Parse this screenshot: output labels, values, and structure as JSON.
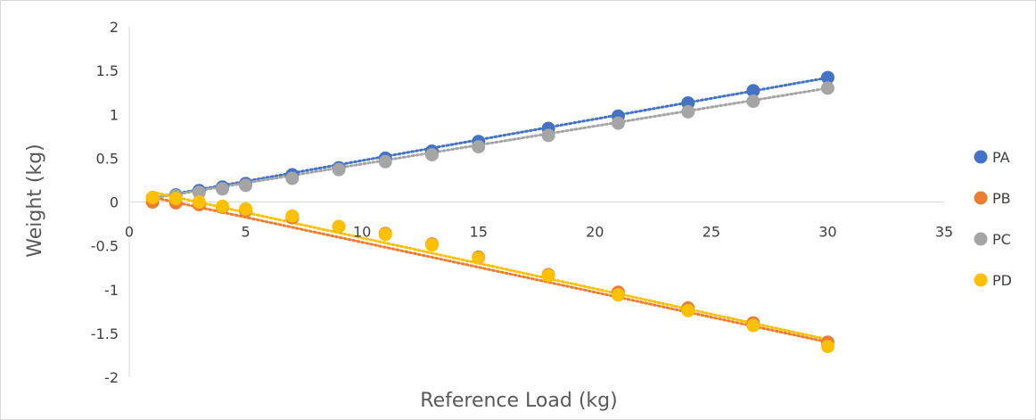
{
  "chart_data": {
    "type": "scatter",
    "xlabel": "Reference Load (kg)",
    "ylabel": "Weight (kg)",
    "xlim": [
      0,
      35
    ],
    "ylim": [
      -2,
      2
    ],
    "x_ticks": [
      "0",
      "5",
      "10",
      "15",
      "20",
      "25",
      "30",
      "35"
    ],
    "y_ticks": [
      "2",
      "1.5",
      "1",
      "0.5",
      "0",
      "-0.5",
      "-1",
      "-1.5",
      "-2"
    ],
    "grid": false,
    "legend_position": "right",
    "trendlines": "linear, dotted",
    "series": [
      {
        "name": "PA",
        "color": "#4472C4",
        "x": [
          1,
          2,
          3,
          4,
          5,
          7,
          9,
          11,
          13,
          15,
          18,
          21,
          24,
          26.8,
          30
        ],
        "y": [
          0.05,
          0.08,
          0.13,
          0.17,
          0.21,
          0.31,
          0.39,
          0.5,
          0.58,
          0.69,
          0.84,
          0.98,
          1.13,
          1.27,
          1.42
        ],
        "trend": [
          0.0,
          0.0473
        ]
      },
      {
        "name": "PB",
        "color": "#ED7D31",
        "x": [
          1,
          2,
          3,
          4,
          5,
          7,
          9,
          11,
          13,
          15,
          18,
          21,
          24,
          26.8,
          30
        ],
        "y": [
          0.0,
          -0.01,
          -0.03,
          -0.06,
          -0.1,
          -0.18,
          -0.28,
          -0.36,
          -0.48,
          -0.63,
          -0.83,
          -1.03,
          -1.21,
          -1.38,
          -1.6
        ],
        "trend": [
          0.11,
          -0.057
        ]
      },
      {
        "name": "PC",
        "color": "#A5A5A5",
        "x": [
          1,
          2,
          3,
          4,
          5,
          7,
          9,
          11,
          13,
          15,
          18,
          21,
          24,
          26.8,
          30
        ],
        "y": [
          0.04,
          0.07,
          0.11,
          0.15,
          0.19,
          0.27,
          0.37,
          0.46,
          0.54,
          0.63,
          0.76,
          0.9,
          1.03,
          1.15,
          1.3
        ],
        "trend": [
          0.0,
          0.0433
        ]
      },
      {
        "name": "PD",
        "color": "#FFC000",
        "x": [
          1,
          2,
          3,
          4,
          5,
          7,
          9,
          11,
          13,
          15,
          18,
          21,
          24,
          26.8,
          30
        ],
        "y": [
          0.05,
          0.04,
          0.0,
          -0.05,
          -0.08,
          -0.16,
          -0.28,
          -0.37,
          -0.49,
          -0.64,
          -0.84,
          -1.06,
          -1.24,
          -1.41,
          -1.65
        ],
        "trend": [
          0.17,
          -0.058
        ]
      }
    ]
  }
}
